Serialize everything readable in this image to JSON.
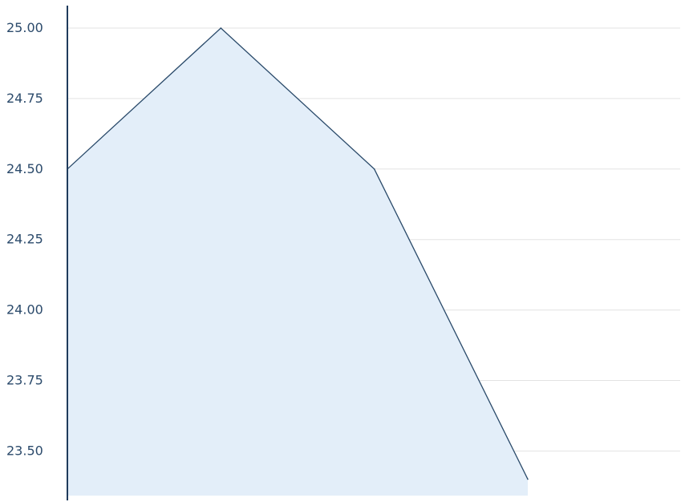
{
  "chart_data": {
    "type": "area",
    "title": "",
    "xlabel": "",
    "ylabel": "",
    "x": [
      0,
      1,
      2,
      3
    ],
    "series": [
      {
        "values": [
          24.5,
          25.0,
          24.5,
          23.4
        ]
      }
    ],
    "y_ticks": [
      "25.00",
      "24.75",
      "24.50",
      "24.25",
      "24.00",
      "23.75",
      "23.50"
    ],
    "y_tick_values": [
      25.0,
      24.75,
      24.5,
      24.25,
      24.0,
      23.75,
      23.5
    ],
    "ylim": [
      23.35,
      25.0
    ],
    "grid": true,
    "legend": "none",
    "colors": {
      "line": "#2a4a6a",
      "fill": "#e3eef9",
      "axis": "#1f3b5c",
      "grid": "#e3e3e3",
      "tick_text": "#2b4a6b"
    }
  }
}
